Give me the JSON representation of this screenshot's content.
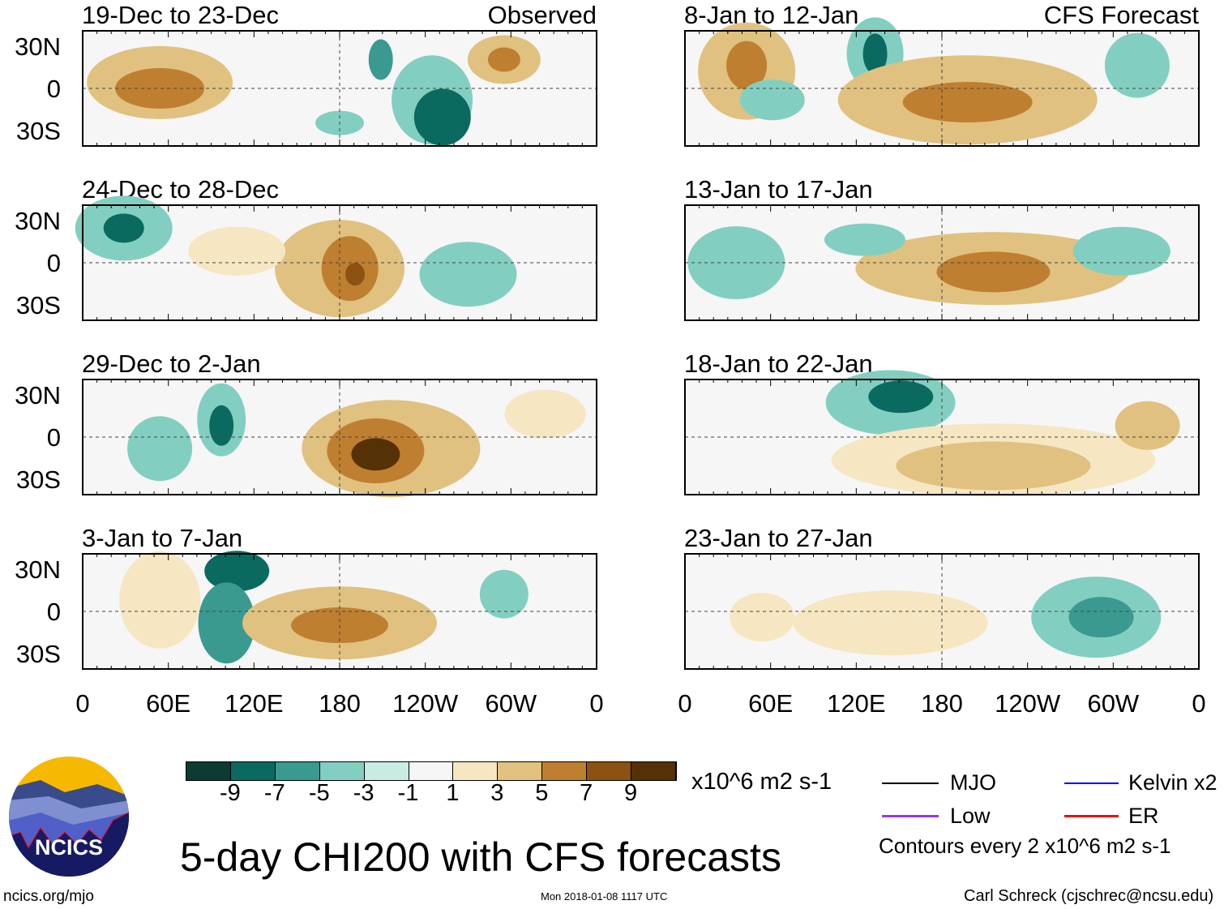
{
  "chart_data": {
    "type": "heatmap",
    "title": "5-day CHI200 with CFS forecasts",
    "units": "x10^6 m2 s-1",
    "y_ticks": [
      "30N",
      "0",
      "30S"
    ],
    "x_ticks": [
      "0",
      "60E",
      "120E",
      "180",
      "120W",
      "60W",
      "0"
    ],
    "columns": [
      {
        "label": "Observed",
        "panels": [
          "19-Dec to 23-Dec",
          "24-Dec to 28-Dec",
          "29-Dec to 2-Jan",
          "3-Jan to 7-Jan"
        ]
      },
      {
        "label": "CFS Forecast",
        "panels": [
          "8-Jan to 12-Jan",
          "13-Jan to 17-Jan",
          "18-Jan to 22-Jan",
          "23-Jan to 27-Jan"
        ]
      }
    ],
    "colorbar": {
      "labels": [
        "-9",
        "-7",
        "-5",
        "-3",
        "-1",
        "1",
        "3",
        "5",
        "7",
        "9"
      ],
      "colors": [
        "#0c3b33",
        "#0b6a60",
        "#3a9a90",
        "#82cfc1",
        "#c9ebe4",
        "#f6f6f6",
        "#f6e7c2",
        "#e0c17f",
        "#bf7f30",
        "#8c5211",
        "#553106"
      ]
    },
    "legend": [
      {
        "label": "MJO",
        "color": "#000000"
      },
      {
        "label": "Kelvin x2",
        "color": "#0000ff"
      },
      {
        "label": "Low",
        "color": "#9933ff"
      },
      {
        "label": "ER",
        "color": "#ff0000"
      }
    ],
    "contour_note": "Contours every 2 x10^6 m2 s-1"
  },
  "footer": {
    "logo_text": "NCICS",
    "url": "ncics.org/mjo",
    "timestamp": "Mon 2018-01-08 1117 UTC",
    "credit": "Carl Schreck (cjschrec@ncsu.edu)"
  }
}
